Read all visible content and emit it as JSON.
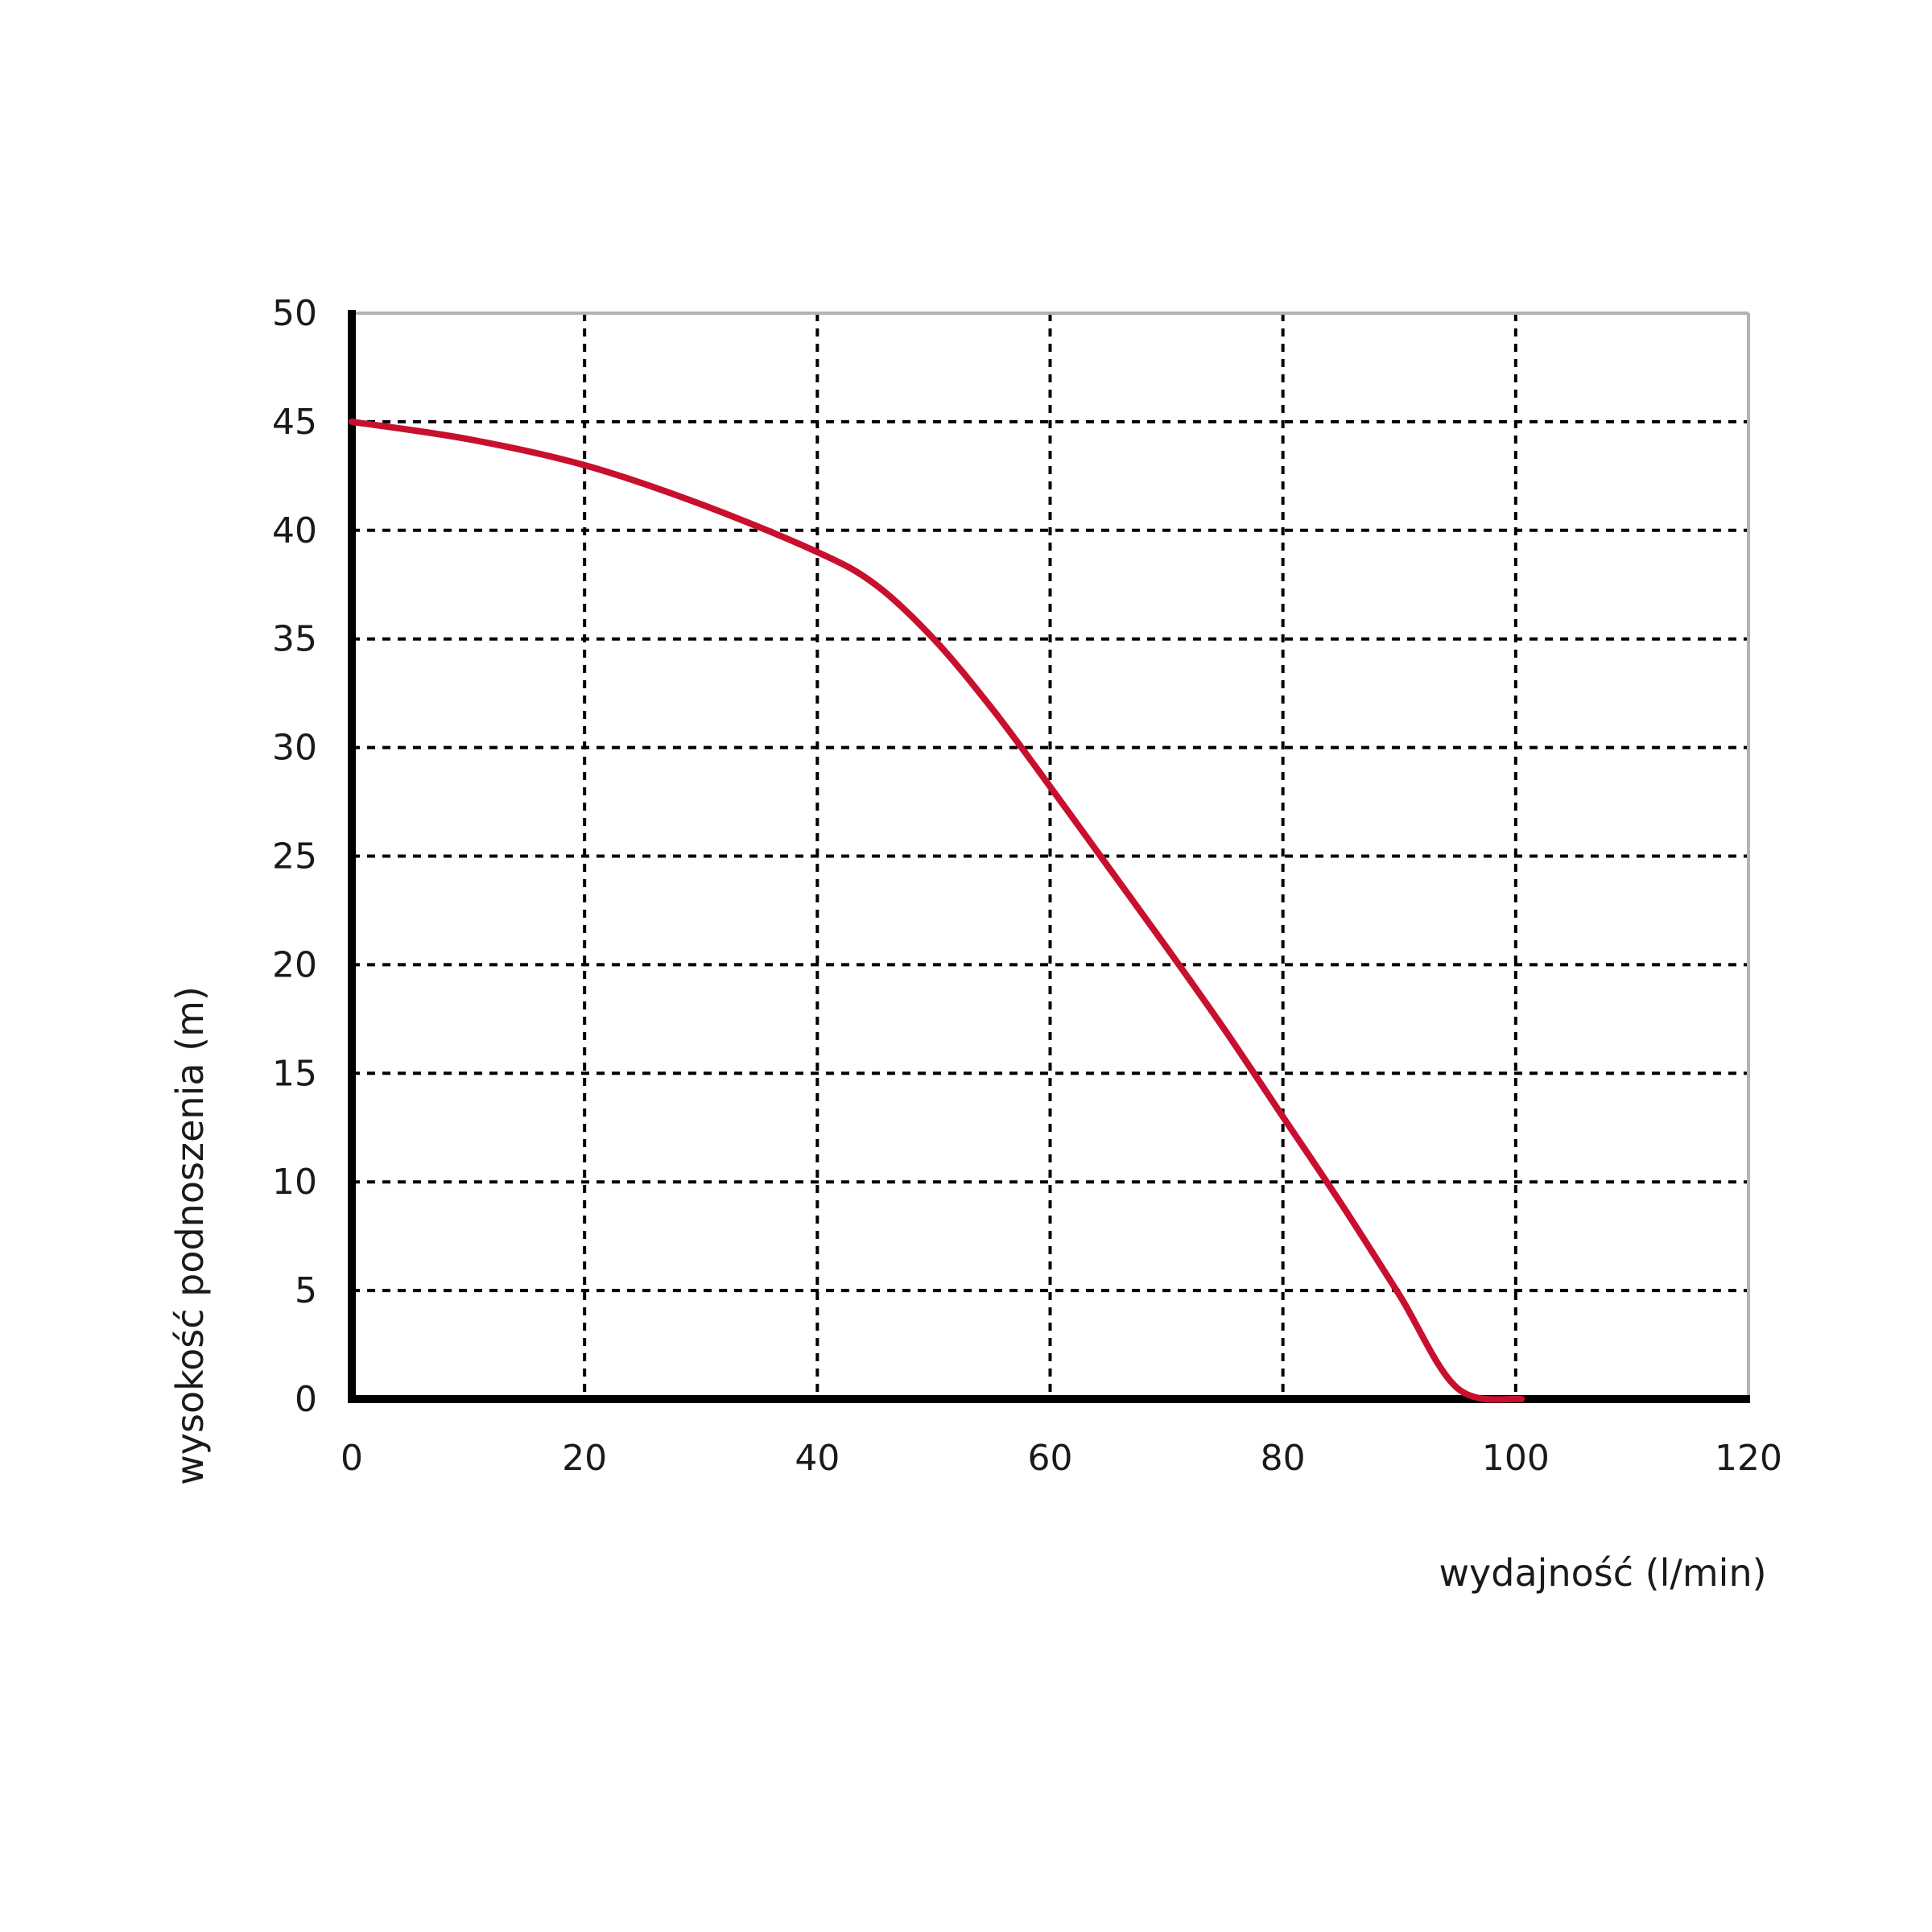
{
  "chart_data": {
    "type": "line",
    "title": "",
    "xlabel": "wydajność (l/min)",
    "ylabel": "wysokość podnoszenia (m)",
    "xlim": [
      0,
      120
    ],
    "ylim": [
      0,
      50
    ],
    "x_ticks": [
      0,
      20,
      40,
      60,
      80,
      100,
      120
    ],
    "y_ticks": [
      0,
      5,
      10,
      15,
      20,
      25,
      30,
      35,
      40,
      45,
      50
    ],
    "x_tick_labels": [
      "0",
      "20",
      "40",
      "60",
      "80",
      "100",
      "120"
    ],
    "y_tick_labels": [
      "0",
      "5",
      "10",
      "15",
      "20",
      "25",
      "30",
      "35",
      "40",
      "45",
      "50"
    ],
    "grid": true,
    "legend": "none",
    "series": [
      {
        "color": "#c8102e",
        "points": [
          [
            0,
            45
          ],
          [
            10,
            44.2
          ],
          [
            20,
            43
          ],
          [
            30,
            41.2
          ],
          [
            40,
            39
          ],
          [
            45,
            37.5
          ],
          [
            50,
            35
          ],
          [
            55,
            31.8
          ],
          [
            60,
            28.2
          ],
          [
            65,
            24.5
          ],
          [
            70,
            20.8
          ],
          [
            75,
            17
          ],
          [
            80,
            13
          ],
          [
            85,
            9
          ],
          [
            90,
            4.8
          ],
          [
            95,
            0.5
          ],
          [
            100.5,
            0
          ]
        ]
      }
    ]
  }
}
